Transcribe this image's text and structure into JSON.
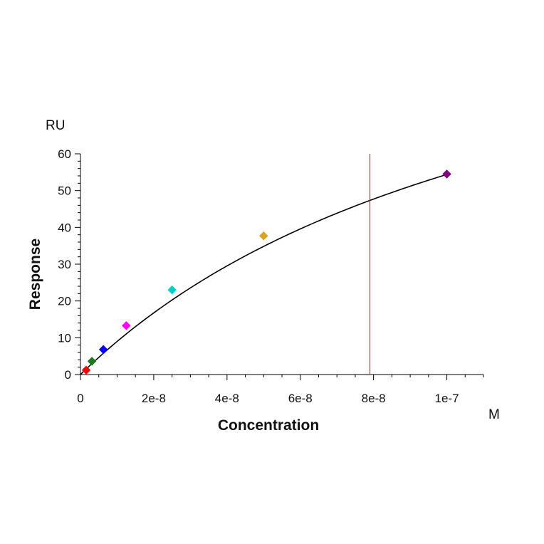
{
  "chart_data": {
    "type": "scatter",
    "xlabel": "Concentration",
    "ylabel": "Response",
    "x_unit": "M",
    "y_unit": "RU",
    "xlim": [
      0,
      1.1e-07
    ],
    "ylim": [
      0,
      60
    ],
    "x_ticks": [
      0,
      2e-08,
      4e-08,
      6e-08,
      8e-08,
      1e-07
    ],
    "x_tick_labels": [
      "0",
      "2e-8",
      "4e-8",
      "6e-8",
      "8e-8",
      "1e-7"
    ],
    "y_ticks": [
      0,
      10,
      20,
      30,
      40,
      50,
      60
    ],
    "y_tick_labels": [
      "0",
      "10",
      "20",
      "30",
      "40",
      "50",
      "60"
    ],
    "grid": false,
    "points": [
      {
        "x": 1.5625e-09,
        "y": 1.2,
        "color": "#ff0000"
      },
      {
        "x": 3.125e-09,
        "y": 3.6,
        "color": "#1f7a1f"
      },
      {
        "x": 6.25e-09,
        "y": 6.8,
        "color": "#0000ff"
      },
      {
        "x": 1.25e-08,
        "y": 13.3,
        "color": "#ff00ff"
      },
      {
        "x": 2.5e-08,
        "y": 23.0,
        "color": "#00cccc"
      },
      {
        "x": 5e-08,
        "y": 37.7,
        "color": "#daa520"
      },
      {
        "x": 1e-07,
        "y": 54.5,
        "color": "#800080"
      }
    ],
    "fit_curve": {
      "model": "hyperbolic",
      "rmax": 124,
      "kd": 1.28e-07,
      "color": "#000000"
    },
    "vertical_marker": {
      "x": 7.9e-08,
      "color": "#ee2222"
    }
  }
}
